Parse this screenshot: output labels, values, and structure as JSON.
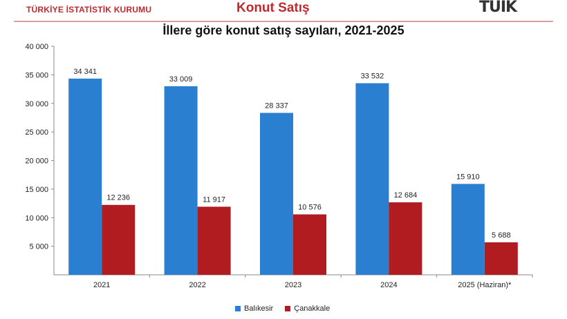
{
  "header": {
    "org_name": "TÜRKİYE İSTATİSTİK KURUMU",
    "page_title": "Konut Satış",
    "logo_text": "TÜİK"
  },
  "chart_data": {
    "type": "bar",
    "title": "İllere göre konut satış sayıları, 2021-2025",
    "categories": [
      "2021",
      "2022",
      "2023",
      "2024",
      "2025 (Haziran)*"
    ],
    "series": [
      {
        "name": "Balıkesir",
        "color": "#2a7fd0",
        "values": [
          34341,
          33009,
          28337,
          33532,
          15910
        ],
        "labels": [
          "34 341",
          "33 009",
          "28 337",
          "33 532",
          "15 910"
        ]
      },
      {
        "name": "Çanakkale",
        "color": "#b01c1f",
        "values": [
          12236,
          11917,
          10576,
          12684,
          5688
        ],
        "labels": [
          "12 236",
          "11 917",
          "10 576",
          "12 684",
          "5 688"
        ]
      }
    ],
    "ylim": [
      0,
      40000
    ],
    "y_ticks": [
      5000,
      10000,
      15000,
      20000,
      25000,
      30000,
      35000,
      40000
    ],
    "y_tick_labels": [
      "5 000",
      "10 000",
      "15 000",
      "20 000",
      "25 000",
      "30 000",
      "35 000",
      "40 000"
    ],
    "grid": false,
    "legend_position": "bottom-center"
  }
}
